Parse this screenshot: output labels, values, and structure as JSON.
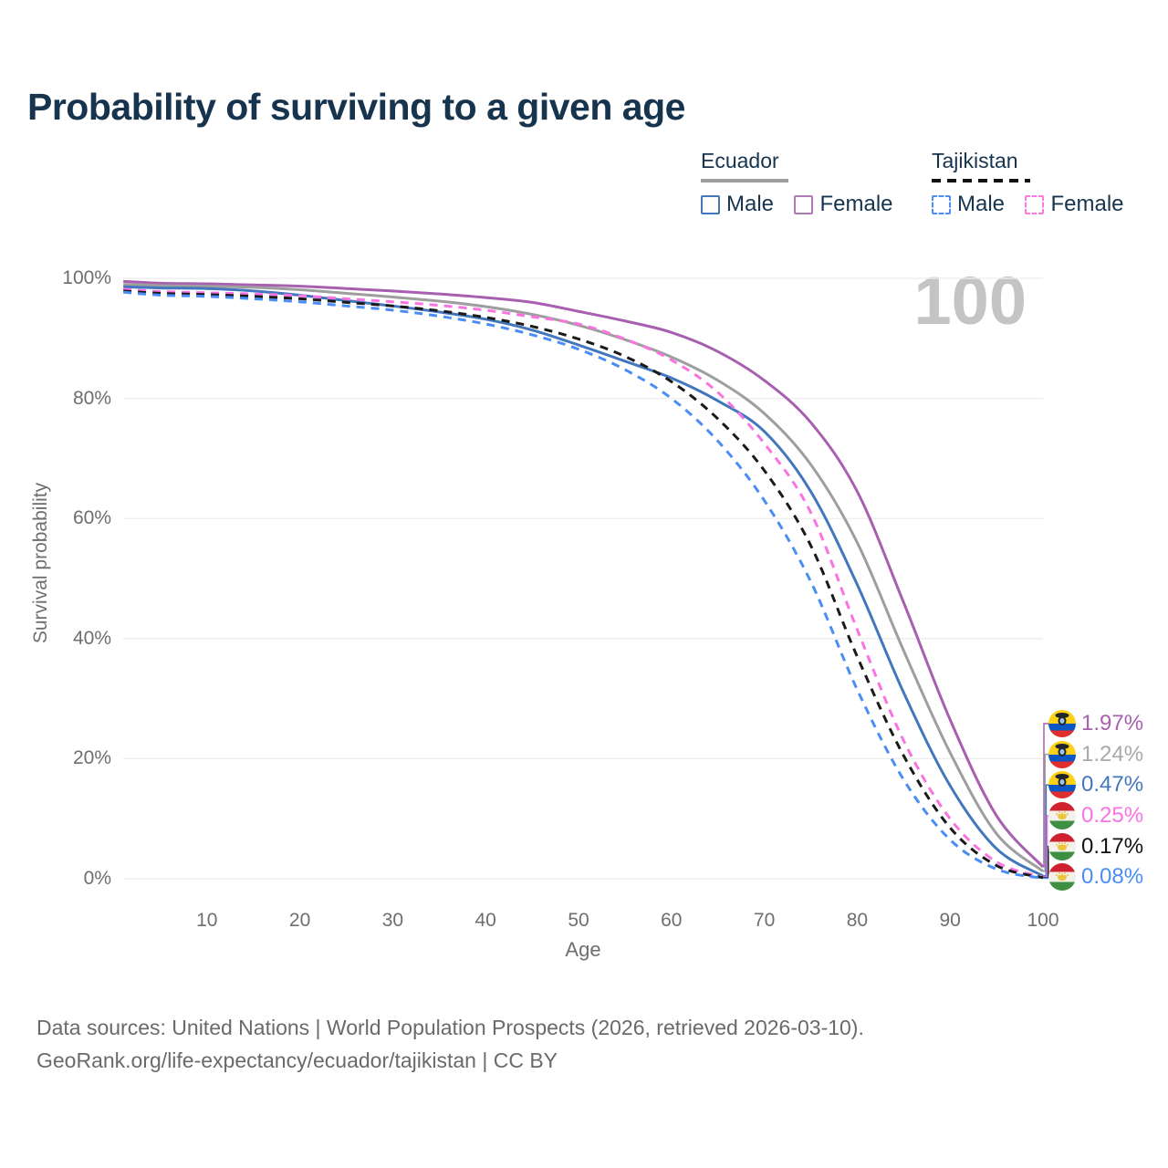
{
  "title": "Probability of surviving to a given age",
  "watermark": "100",
  "legend": {
    "groups": [
      {
        "country": "Ecuador",
        "line_style": "solid",
        "line_color": "#9e9e9e",
        "items": [
          {
            "label": "Male",
            "color": "#4377bd",
            "style": "solid"
          },
          {
            "label": "Female",
            "color": "#b279b8",
            "style": "solid"
          }
        ]
      },
      {
        "country": "Tajikistan",
        "line_style": "dashed",
        "line_color": "#111111",
        "items": [
          {
            "label": "Male",
            "color": "#4a8df5",
            "style": "dashed"
          },
          {
            "label": "Female",
            "color": "#f97ae3",
            "style": "dashed"
          }
        ]
      }
    ]
  },
  "axes": {
    "y_title": "Survival probability",
    "x_title": "Age",
    "y_ticks": [
      "100%",
      "80%",
      "60%",
      "40%",
      "20%",
      "0%"
    ],
    "x_ticks": [
      "10",
      "20",
      "30",
      "40",
      "50",
      "60",
      "70",
      "80",
      "90",
      "100"
    ]
  },
  "chart_data": {
    "type": "line",
    "title": "Probability of surviving to a given age",
    "xlabel": "Age",
    "ylabel": "Survival probability",
    "xlim": [
      0,
      100
    ],
    "ylim": [
      0,
      100
    ],
    "grid": "horizontal",
    "legend_position": "top-right",
    "x": [
      1,
      5,
      10,
      15,
      20,
      25,
      30,
      35,
      40,
      45,
      50,
      55,
      60,
      65,
      70,
      75,
      80,
      85,
      90,
      95,
      100
    ],
    "series": [
      {
        "name": "Ecuador Female",
        "color": "#a85fb0",
        "line_style": "solid",
        "end_label": "1.97%",
        "values": [
          99.5,
          99.2,
          99.1,
          98.9,
          98.7,
          98.3,
          97.9,
          97.4,
          96.8,
          96.0,
          94.5,
          92.9,
          91.0,
          87.8,
          83.0,
          76.0,
          64.5,
          46.0,
          26.5,
          10.5,
          1.97
        ]
      },
      {
        "name": "Ecuador Both sexes",
        "color": "#9e9e9e",
        "line_style": "solid",
        "end_label": "1.24%",
        "values": [
          99.0,
          98.8,
          98.7,
          98.5,
          98.1,
          97.5,
          96.9,
          96.2,
          95.3,
          94.0,
          92.2,
          89.8,
          86.9,
          83.0,
          77.5,
          69.0,
          56.0,
          38.0,
          21.0,
          7.5,
          1.24
        ]
      },
      {
        "name": "Ecuador Male",
        "color": "#4377bd",
        "line_style": "solid",
        "end_label": "0.47%",
        "values": [
          98.6,
          98.4,
          98.3,
          97.9,
          97.2,
          96.3,
          95.4,
          94.4,
          93.2,
          91.4,
          88.9,
          86.2,
          83.4,
          79.6,
          74.5,
          64.5,
          49.0,
          31.0,
          15.5,
          5.0,
          0.47
        ]
      },
      {
        "name": "Tajikistan Female",
        "color": "#f973e2",
        "line_style": "dashed",
        "end_label": "0.25%",
        "values": [
          98.2,
          97.8,
          97.6,
          97.4,
          97.1,
          96.6,
          96.1,
          95.5,
          94.7,
          93.6,
          92.4,
          89.9,
          86.4,
          81.0,
          72.5,
          61.0,
          41.5,
          23.0,
          10.0,
          2.8,
          0.25
        ]
      },
      {
        "name": "Tajikistan Both sexes",
        "color": "#1a1a1a",
        "line_style": "dashed",
        "end_label": "0.17%",
        "values": [
          97.9,
          97.5,
          97.3,
          97.0,
          96.6,
          96.0,
          95.4,
          94.6,
          93.5,
          92.0,
          89.9,
          87.0,
          82.8,
          76.6,
          68.0,
          55.5,
          37.0,
          20.5,
          8.5,
          2.2,
          0.17
        ]
      },
      {
        "name": "Tajikistan Male",
        "color": "#4a8df5",
        "line_style": "dashed",
        "end_label": "0.08%",
        "values": [
          97.7,
          97.2,
          97.0,
          96.6,
          96.1,
          95.4,
          94.7,
          93.7,
          92.4,
          90.6,
          88.2,
          84.8,
          80.0,
          72.9,
          63.0,
          49.5,
          31.5,
          16.5,
          6.5,
          1.6,
          0.08
        ]
      }
    ]
  },
  "end_labels": [
    {
      "flag": "ecuador",
      "text": "1.97%",
      "color": "#a85fb0"
    },
    {
      "flag": "ecuador",
      "text": "1.24%",
      "color": "#a9a9a9"
    },
    {
      "flag": "ecuador",
      "text": "0.47%",
      "color": "#4377bd"
    },
    {
      "flag": "tajikistan",
      "text": "0.25%",
      "color": "#f973e2"
    },
    {
      "flag": "tajikistan",
      "text": "0.17%",
      "color": "#111111"
    },
    {
      "flag": "tajikistan",
      "text": "0.08%",
      "color": "#4a8df5"
    }
  ],
  "footer": {
    "line1": "Data sources: United Nations | World Population Prospects (2026, retrieved 2026-03-10).",
    "line2": "GeoRank.org/life-expectancy/ecuador/tajikistan | CC BY"
  },
  "colors": {
    "title_text": "#17344f",
    "axis_text": "#6e6e6e",
    "gridline": "#ededed",
    "watermark": "#c4c4c4",
    "footer_text": "#6a6a6a"
  }
}
